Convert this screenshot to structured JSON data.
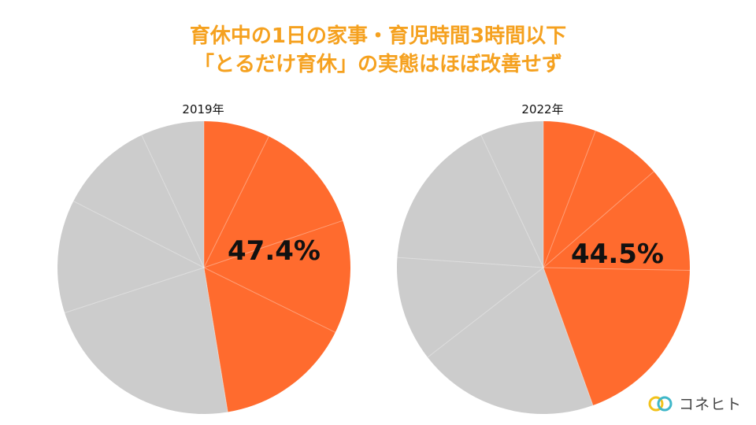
{
  "title": {
    "line1": "育休中の1日の家事・育児時間3時間以下",
    "line2": "「とるだけ育休」の実態はほぼ改善せず"
  },
  "chart_data": [
    {
      "type": "pie",
      "title": "2019年",
      "slices": [
        {
          "value": 47.4,
          "label": "47.4%",
          "color": "#ff6b2e"
        },
        {
          "value": 52.6,
          "label": "",
          "color": "#cccccc"
        }
      ],
      "sub_wedges": [
        7.3,
        12.5,
        12.5,
        15.1,
        22.6,
        12.5,
        10.5,
        7.0
      ]
    },
    {
      "type": "pie",
      "title": "2022年",
      "slices": [
        {
          "value": 44.5,
          "label": "44.5%",
          "color": "#ff6b2e"
        },
        {
          "value": 55.5,
          "label": "",
          "color": "#cccccc"
        }
      ],
      "sub_wedges": [
        5.8,
        7.8,
        11.7,
        19.2,
        20.0,
        11.6,
        16.9,
        7.0
      ]
    }
  ],
  "logo": {
    "text": "コネヒト",
    "icon": "interlocking-rings-icon"
  },
  "colors": {
    "title": "#f5a11f",
    "accent": "#ff6b2e",
    "rest": "#cccccc",
    "divider": "#ffffff"
  }
}
